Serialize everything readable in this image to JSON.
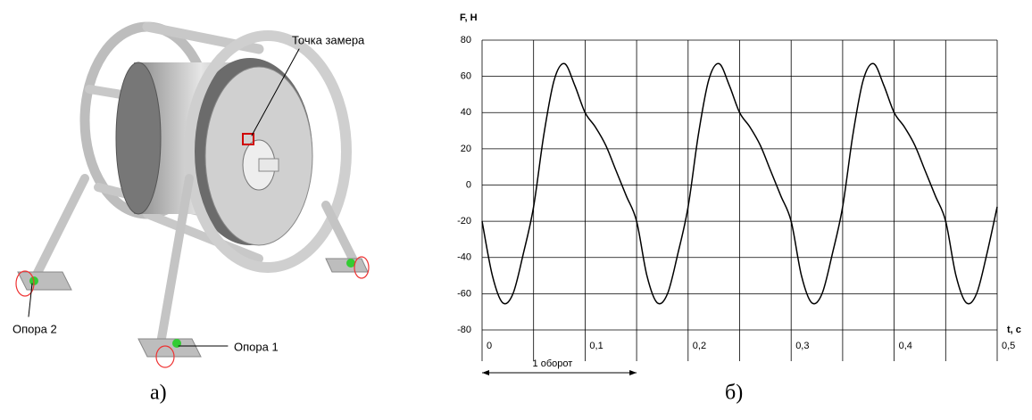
{
  "figure": {
    "labels": [
      "Точка замера",
      "Опора 2",
      "Опора 1"
    ],
    "captions": [
      "а)",
      "б)"
    ]
  },
  "chart_data": {
    "type": "line",
    "ylabel": "F, H",
    "xlabel": "t, c",
    "x": [
      0,
      0.01,
      0.02,
      0.03,
      0.04,
      0.05,
      0.06,
      0.07,
      0.08,
      0.09,
      0.1,
      0.11,
      0.12,
      0.13,
      0.14,
      0.15,
      0.16,
      0.17,
      0.18,
      0.19,
      0.2,
      0.21,
      0.22,
      0.23,
      0.24,
      0.25,
      0.26,
      0.27,
      0.28,
      0.29,
      0.3,
      0.31,
      0.32,
      0.33,
      0.34,
      0.35,
      0.36,
      0.37,
      0.38,
      0.39,
      0.4,
      0.41,
      0.42,
      0.43,
      0.44,
      0.45,
      0.46,
      0.47,
      0.48,
      0.49,
      0.5
    ],
    "series": [
      {
        "color": "#000000",
        "values": [
          -20,
          -50,
          -65,
          -60,
          -38,
          -12,
          28,
          58,
          67,
          55,
          40,
          32,
          22,
          8,
          -6,
          -20,
          -50,
          -65,
          -60,
          -38,
          -12,
          28,
          58,
          67,
          55,
          40,
          32,
          22,
          8,
          -6,
          -20,
          -50,
          -65,
          -60,
          -38,
          -12,
          28,
          58,
          67,
          55,
          40,
          32,
          22,
          8,
          -6,
          -20,
          -50,
          -65,
          -60,
          -38,
          -12
        ]
      }
    ],
    "xlim": [
      0,
      0.5
    ],
    "ylim": [
      -80,
      80
    ],
    "xticks": [
      0,
      {
        "value": 0.1,
        "label": "0,1"
      },
      {
        "value": 0.2,
        "label": "0,2"
      },
      {
        "value": 0.3,
        "label": "0,3"
      },
      {
        "value": 0.4,
        "label": "0,4"
      },
      {
        "value": 0.5,
        "label": "0,5"
      }
    ],
    "xgrid": [
      0,
      0.05,
      0.1,
      0.15,
      0.2,
      0.25,
      0.3,
      0.35,
      0.4,
      0.45,
      0.5
    ],
    "yticks": [
      -80,
      -60,
      -40,
      -20,
      0,
      20,
      40,
      60,
      80
    ],
    "annotation": {
      "text": "1 оборот",
      "x": [
        0,
        0.15
      ]
    }
  }
}
